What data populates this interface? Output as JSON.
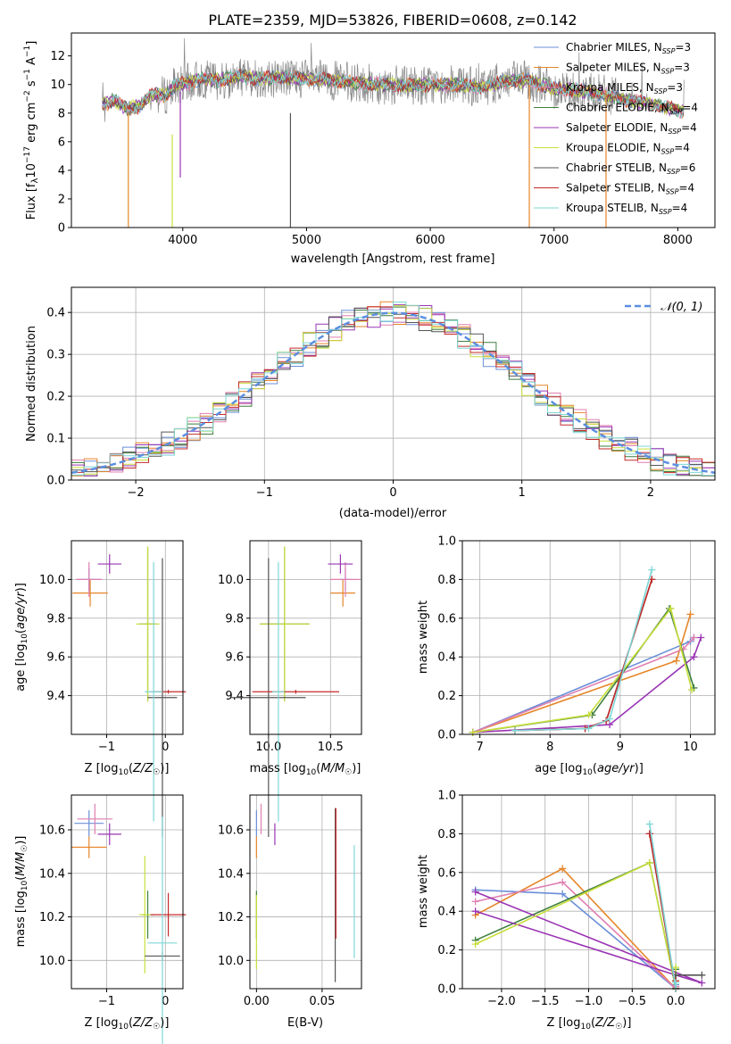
{
  "title": "PLATE=2359, MJD=53826, FIBERID=0608, z=0.142",
  "colors": {
    "Chabrier MILES": "#6a8fd8",
    "Salpeter MILES": "#e6862a",
    "Kroupa MILES": "#e07fb0",
    "Chabrier ELODIE": "#3f7f3f",
    "Salpeter ELODIE": "#9a35b4",
    "Kroupa ELODIE": "#c8de3a",
    "Chabrier STELIB": "#555555",
    "Salpeter STELIB": "#c42a2a",
    "Kroupa STELIB": "#7fd7d7",
    "gaussian": "#5b8ee0",
    "grid": "#b0b0b0"
  },
  "chart_data": [
    {
      "type": "line",
      "panel": "spectrum",
      "xlabel": "wavelength [Angstrom, rest frame]",
      "ylabel": "Flux [f_λ10^-17 erg cm^-2 s^-1 A^-1]",
      "xlim": [
        3100,
        8300
      ],
      "ylim": [
        0,
        13.6
      ],
      "xticks": [
        4000,
        5000,
        6000,
        7000,
        8000
      ],
      "yticks": [
        0,
        2,
        4,
        6,
        8,
        10,
        12
      ],
      "grid": false,
      "legend_position": "upper-right",
      "legend": [
        {
          "label": "Chabrier MILES, N",
          "sub": "SSP",
          "value": "=3",
          "color_key": "Chabrier MILES"
        },
        {
          "label": "Salpeter MILES, N",
          "sub": "SSP",
          "value": "=3",
          "color_key": "Salpeter MILES"
        },
        {
          "label": "Kroupa MILES, N",
          "sub": "SSP",
          "value": "=3",
          "color_key": "Kroupa MILES"
        },
        {
          "label": "Chabrier ELODIE, N",
          "sub": "SSP",
          "value": "=4",
          "color_key": "Chabrier ELODIE"
        },
        {
          "label": "Salpeter ELODIE, N",
          "sub": "SSP",
          "value": "=4",
          "color_key": "Salpeter ELODIE"
        },
        {
          "label": "Kroupa ELODIE, N",
          "sub": "SSP",
          "value": "=4",
          "color_key": "Kroupa ELODIE"
        },
        {
          "label": "Chabrier STELIB, N",
          "sub": "SSP",
          "value": "=6",
          "color_key": "Chabrier STELIB"
        },
        {
          "label": "Salpeter STELIB, N",
          "sub": "SSP",
          "value": "=4",
          "color_key": "Salpeter STELIB"
        },
        {
          "label": "Kroupa STELIB, N",
          "sub": "SSP",
          "value": "=4",
          "color_key": "Kroupa STELIB"
        }
      ],
      "continuum": [
        [
          3350,
          8.6
        ],
        [
          3450,
          8.9
        ],
        [
          3550,
          8.3
        ],
        [
          3650,
          8.5
        ],
        [
          3750,
          9.3
        ],
        [
          3850,
          9.2
        ],
        [
          3950,
          10.0
        ],
        [
          4050,
          10.1
        ],
        [
          4150,
          10.4
        ],
        [
          4300,
          10.3
        ],
        [
          4450,
          10.6
        ],
        [
          4600,
          10.4
        ],
        [
          4800,
          10.5
        ],
        [
          5000,
          10.4
        ],
        [
          5200,
          10.3
        ],
        [
          5400,
          10.1
        ],
        [
          5600,
          10.0
        ],
        [
          5800,
          9.9
        ],
        [
          6000,
          10.0
        ],
        [
          6200,
          10.0
        ],
        [
          6400,
          9.8
        ],
        [
          6600,
          10.2
        ],
        [
          6800,
          10.3
        ],
        [
          7000,
          9.7
        ],
        [
          7200,
          9.6
        ],
        [
          7400,
          9.3
        ],
        [
          7600,
          8.9
        ],
        [
          7800,
          8.6
        ],
        [
          8000,
          8.2
        ],
        [
          8050,
          8.1
        ]
      ],
      "model_drops": [
        {
          "series": "Salpeter MILES",
          "x": 3560,
          "ymin": 0,
          "ymax": 8.0
        },
        {
          "series": "Kroupa ELODIE",
          "x": 3915,
          "ymin": 0,
          "ymax": 6.5
        },
        {
          "series": "Salpeter ELODIE",
          "x": 3980,
          "ymin": 3.5,
          "ymax": 9.5
        },
        {
          "series": "Chabrier STELIB",
          "x": 4870,
          "ymin": 0,
          "ymax": 8.0
        },
        {
          "series": "Salpeter MILES",
          "x": 6800,
          "ymin": 0,
          "ymax": 10.0
        },
        {
          "series": "Salpeter MILES",
          "x": 7420,
          "ymin": 0,
          "ymax": 9.6
        }
      ]
    },
    {
      "type": "line",
      "panel": "residual-histogram",
      "xlabel": "(data-model)/error",
      "ylabel": "Normed distribution",
      "xlim": [
        -2.5,
        2.5
      ],
      "ylim": [
        0,
        0.46
      ],
      "xticks": [
        -2,
        -1,
        0,
        1,
        2
      ],
      "yticks": [
        0.0,
        0.1,
        0.2,
        0.3,
        0.4
      ],
      "grid": true,
      "legend_position": "upper-right",
      "gaussian_label": "𝒩(0, 1)",
      "bin_width": 0.1,
      "bin_start": -2.5
    },
    {
      "type": "scatter",
      "panel": "age-vs-metallicity",
      "xlabel": "Z [log10(Z/Z☉)]",
      "ylabel": "age [log10(age/yr)]",
      "xlim": [
        -1.6,
        0.3
      ],
      "ylim": [
        9.2,
        10.2
      ],
      "xticks": [
        -1,
        0
      ],
      "yticks": [
        9.4,
        9.6,
        9.8,
        10.0
      ],
      "grid": true,
      "points": [
        {
          "series": "Chabrier MILES",
          "x": -1.3,
          "y": 10.0,
          "xerr": 0.2,
          "yerr": 0.06
        },
        {
          "series": "Salpeter MILES",
          "x": -1.28,
          "y": 9.93,
          "xerr": 0.3,
          "yerr": 0.07
        },
        {
          "series": "Kroupa MILES",
          "x": -1.3,
          "y": 10.0,
          "xerr": 0.22,
          "yerr": 0.09
        },
        {
          "series": "Chabrier ELODIE",
          "x": -0.3,
          "y": 9.77,
          "xerr": 0.15,
          "yerr": 0.4
        },
        {
          "series": "Salpeter ELODIE",
          "x": -0.95,
          "y": 10.08,
          "xerr": 0.2,
          "yerr": 0.05
        },
        {
          "series": "Kroupa ELODIE",
          "x": -0.3,
          "y": 9.77,
          "xerr": 0.2,
          "yerr": 0.4
        },
        {
          "series": "Chabrier STELIB",
          "x": -0.05,
          "y": 9.39,
          "xerr": 0.25,
          "yerr": 0.72
        },
        {
          "series": "Salpeter STELIB",
          "x": 0.05,
          "y": 9.42,
          "xerr": 0.3,
          "yerr": 0.01
        },
        {
          "series": "Kroupa STELIB",
          "x": -0.2,
          "y": 9.42,
          "xerr": 0.15,
          "yerr": 0.67
        }
      ]
    },
    {
      "type": "scatter",
      "panel": "age-vs-mass",
      "xlabel": "mass [log10(M/M☉)]",
      "ylabel": "",
      "xlim": [
        9.85,
        10.75
      ],
      "ylim": [
        9.2,
        10.2
      ],
      "xticks": [
        10.0,
        10.5
      ],
      "yticks": [
        9.4,
        9.6,
        9.8,
        10.0
      ],
      "grid": true,
      "points": [
        {
          "series": "Chabrier MILES",
          "x": 10.62,
          "y": 10.0,
          "xerr": 0.05,
          "yerr": 0.06
        },
        {
          "series": "Salpeter MILES",
          "x": 10.6,
          "y": 9.93,
          "xerr": 0.1,
          "yerr": 0.07
        },
        {
          "series": "Kroupa MILES",
          "x": 10.62,
          "y": 10.0,
          "xerr": 0.12,
          "yerr": 0.09
        },
        {
          "series": "Chabrier ELODIE",
          "x": 10.13,
          "y": 9.77,
          "xerr": 0.2,
          "yerr": 0.4
        },
        {
          "series": "Salpeter ELODIE",
          "x": 10.58,
          "y": 10.08,
          "xerr": 0.1,
          "yerr": 0.05
        },
        {
          "series": "Kroupa ELODIE",
          "x": 10.13,
          "y": 9.77,
          "xerr": 0.2,
          "yerr": 0.4
        },
        {
          "series": "Chabrier STELIB",
          "x": 10.0,
          "y": 9.39,
          "xerr": 0.3,
          "yerr": 0.72
        },
        {
          "series": "Salpeter STELIB",
          "x": 10.22,
          "y": 9.42,
          "xerr": 0.35,
          "yerr": 0.01
        },
        {
          "series": "Kroupa STELIB",
          "x": 10.08,
          "y": 9.42,
          "xerr": 0.05,
          "yerr": 0.67
        }
      ]
    },
    {
      "type": "line",
      "panel": "mass-weight-vs-age",
      "xlabel": "age [log10(age/yr)]",
      "ylabel": "mass weight",
      "xlim": [
        6.75,
        10.35
      ],
      "ylim": [
        0,
        1.0
      ],
      "xticks": [
        7,
        8,
        9,
        10
      ],
      "yticks": [
        0.0,
        0.2,
        0.4,
        0.6,
        0.8,
        1.0
      ],
      "grid": true,
      "series": [
        {
          "name": "Chabrier MILES",
          "x": [
            6.9,
            10.0,
            10.05
          ],
          "y": [
            0.01,
            0.48,
            0.5
          ]
        },
        {
          "name": "Salpeter MILES",
          "x": [
            6.9,
            9.8,
            10.0
          ],
          "y": [
            0.01,
            0.38,
            0.62
          ]
        },
        {
          "name": "Kroupa MILES",
          "x": [
            6.9,
            9.9,
            10.05
          ],
          "y": [
            0.01,
            0.44,
            0.5
          ]
        },
        {
          "name": "Chabrier ELODIE",
          "x": [
            6.9,
            8.6,
            9.7,
            10.05
          ],
          "y": [
            0.01,
            0.1,
            0.65,
            0.24
          ]
        },
        {
          "name": "Salpeter ELODIE",
          "x": [
            6.9,
            8.85,
            10.05,
            10.15
          ],
          "y": [
            0.01,
            0.05,
            0.4,
            0.5
          ]
        },
        {
          "name": "Kroupa ELODIE",
          "x": [
            6.9,
            8.55,
            9.72,
            10.02
          ],
          "y": [
            0.01,
            0.1,
            0.65,
            0.23
          ]
        },
        {
          "name": "Chabrier STELIB",
          "x": [
            7.5,
            8.5,
            8.8,
            9.45
          ],
          "y": [
            0.02,
            0.03,
            0.07,
            0.8
          ]
        },
        {
          "name": "Salpeter STELIB",
          "x": [
            7.5,
            8.5,
            8.8,
            9.45
          ],
          "y": [
            0.02,
            0.03,
            0.07,
            0.8
          ]
        },
        {
          "name": "Kroupa STELIB",
          "x": [
            7.5,
            8.55,
            8.85,
            9.45
          ],
          "y": [
            0.02,
            0.03,
            0.08,
            0.85
          ]
        }
      ]
    },
    {
      "type": "scatter",
      "panel": "mass-vs-metallicity",
      "xlabel": "Z [log10(Z/Z☉)]",
      "ylabel": "mass [log10(M/M☉)]",
      "xlim": [
        -1.6,
        0.3
      ],
      "ylim": [
        9.87,
        10.76
      ],
      "xticks": [
        -1,
        0
      ],
      "yticks": [
        10.0,
        10.2,
        10.4,
        10.6
      ],
      "grid": true,
      "points": [
        {
          "series": "Chabrier MILES",
          "x": -1.3,
          "y": 10.63,
          "xerr": 0.25,
          "yerr": 0.06
        },
        {
          "series": "Salpeter MILES",
          "x": -1.3,
          "y": 10.52,
          "xerr": 0.3,
          "yerr": 0.05
        },
        {
          "series": "Kroupa MILES",
          "x": -1.2,
          "y": 10.65,
          "xerr": 0.3,
          "yerr": 0.07
        },
        {
          "series": "Chabrier ELODIE",
          "x": -0.3,
          "y": 10.21,
          "xerr": 0.1,
          "yerr": 0.11
        },
        {
          "series": "Salpeter ELODIE",
          "x": -0.95,
          "y": 10.58,
          "xerr": 0.2,
          "yerr": 0.05
        },
        {
          "series": "Kroupa ELODIE",
          "x": -0.35,
          "y": 10.21,
          "xerr": 0.1,
          "yerr": 0.27
        },
        {
          "series": "Chabrier STELIB",
          "x": -0.05,
          "y": 10.02,
          "xerr": 0.3,
          "yerr": 0.02
        },
        {
          "series": "Salpeter STELIB",
          "x": 0.05,
          "y": 10.21,
          "xerr": 0.3,
          "yerr": 0.1
        },
        {
          "series": "Kroupa STELIB",
          "x": -0.05,
          "y": 10.08,
          "xerr": 0.25,
          "yerr": 0.58
        }
      ]
    },
    {
      "type": "scatter",
      "panel": "mass-vs-extinction",
      "xlabel": "E(B-V)",
      "ylabel": "",
      "xlim": [
        -0.005,
        0.08
      ],
      "ylim": [
        9.87,
        10.76
      ],
      "xticks": [
        0.0,
        0.05
      ],
      "yticks": [
        10.0,
        10.2,
        10.4,
        10.6
      ],
      "grid": true,
      "points": [
        {
          "series": "Chabrier MILES",
          "x": 0.0,
          "y": 10.63,
          "yerr": 0.06
        },
        {
          "series": "Salpeter MILES",
          "x": 0.0,
          "y": 10.52,
          "yerr": 0.05
        },
        {
          "series": "Kroupa MILES",
          "x": 0.0035,
          "y": 10.65,
          "yerr": 0.07
        },
        {
          "series": "Chabrier ELODIE",
          "x": 0.0,
          "y": 10.21,
          "yerr": 0.11
        },
        {
          "series": "Salpeter ELODIE",
          "x": 0.014,
          "y": 10.58,
          "yerr": 0.05
        },
        {
          "series": "Kroupa ELODIE",
          "x": 0.0,
          "y": 10.13,
          "yerr": 0.17
        },
        {
          "series": "Chabrier STELIB",
          "x": 0.06,
          "y": 10.3,
          "yerr": 0.4
        },
        {
          "series": "Salpeter STELIB",
          "x": 0.0605,
          "y": 10.4,
          "yerr": 0.3
        },
        {
          "series": "Kroupa STELIB",
          "x": 0.0745,
          "y": 10.27,
          "yerr": 0.26
        }
      ]
    },
    {
      "type": "line",
      "panel": "mass-weight-vs-metallicity",
      "xlabel": "Z [log10(Z/Z☉)]",
      "ylabel": "mass weight",
      "xlim": [
        -2.45,
        0.45
      ],
      "ylim": [
        0,
        1.0
      ],
      "xticks": [
        -2.0,
        -1.5,
        -1.0,
        -0.5,
        0.0
      ],
      "yticks": [
        0.0,
        0.2,
        0.4,
        0.6,
        0.8,
        1.0
      ],
      "grid": true,
      "series": [
        {
          "name": "Chabrier MILES",
          "x": [
            -2.3,
            -1.3,
            0.0,
            0.0
          ],
          "y": [
            0.51,
            0.49,
            0.0,
            0.02
          ]
        },
        {
          "name": "Salpeter MILES",
          "x": [
            -2.3,
            -1.3,
            0.0,
            0.0
          ],
          "y": [
            0.38,
            0.62,
            0.0,
            0.01
          ]
        },
        {
          "name": "Kroupa MILES",
          "x": [
            -2.3,
            -1.3,
            0.0,
            0.0
          ],
          "y": [
            0.45,
            0.55,
            0.0,
            0.01
          ]
        },
        {
          "name": "Chabrier ELODIE",
          "x": [
            -2.3,
            -0.3,
            0.0,
            0.0
          ],
          "y": [
            0.25,
            0.65,
            0.0,
            0.1
          ]
        },
        {
          "name": "Salpeter ELODIE",
          "x": [
            -2.3,
            0.0,
            0.3,
            -2.3
          ],
          "y": [
            0.4,
            0.07,
            0.03,
            0.5
          ]
        },
        {
          "name": "Kroupa ELODIE",
          "x": [
            -2.3,
            -0.3,
            0.0,
            0.0
          ],
          "y": [
            0.23,
            0.65,
            0.0,
            0.11
          ]
        },
        {
          "name": "Chabrier STELIB",
          "x": [
            -0.3,
            0.0,
            0.0,
            0.3
          ],
          "y": [
            0.8,
            0.0,
            0.07,
            0.07
          ]
        },
        {
          "name": "Salpeter STELIB",
          "x": [
            -0.3,
            0.0,
            0.0
          ],
          "y": [
            0.8,
            0.0,
            0.04
          ]
        },
        {
          "name": "Kroupa STELIB",
          "x": [
            -0.3,
            0.0,
            0.0
          ],
          "y": [
            0.85,
            0.0,
            0.03
          ]
        }
      ]
    }
  ]
}
